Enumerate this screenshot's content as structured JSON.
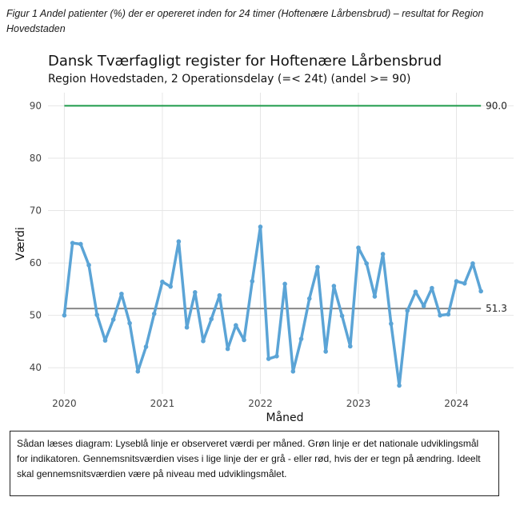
{
  "caption": "Figur 1 Andel patienter (%) der er opereret inden for 24 timer (Hoftenære Lårbensbrud) – resultat for Region Hovedstaden",
  "note": "Sådan læses diagram: Lyseblå linje er observeret værdi per måned. Grøn linje er det nationale udviklingsmål for indikatoren. Gennemsnitsværdien vises i lige linje der er grå - eller rød, hvis der er tegn på ændring. Ideelt skal gennemsnitsværdien være på niveau med udviklingsmålet.",
  "chart_data": {
    "type": "line",
    "title": "Dansk Tværfagligt register for Hoftenære Lårbensbrud",
    "subtitle": "Region Hovedstaden, 2  Operationsdelay (=< 24t) (andel >= 90)",
    "xlabel": "Måned",
    "ylabel": "Værdi",
    "x_ticks": [
      "2020",
      "2021",
      "2022",
      "2023",
      "2024"
    ],
    "y_ticks": [
      40,
      50,
      60,
      70,
      80,
      90
    ],
    "ylim": [
      35,
      92.5
    ],
    "xlim": [
      "2019-11",
      "2024-08"
    ],
    "grid": true,
    "x": [
      "2020-01",
      "2020-02",
      "2020-03",
      "2020-04",
      "2020-05",
      "2020-06",
      "2020-07",
      "2020-08",
      "2020-09",
      "2020-10",
      "2020-11",
      "2020-12",
      "2021-01",
      "2021-02",
      "2021-03",
      "2021-04",
      "2021-05",
      "2021-06",
      "2021-07",
      "2021-08",
      "2021-09",
      "2021-10",
      "2021-11",
      "2021-12",
      "2022-01",
      "2022-02",
      "2022-03",
      "2022-04",
      "2022-05",
      "2022-06",
      "2022-07",
      "2022-08",
      "2022-09",
      "2022-10",
      "2022-11",
      "2022-12",
      "2023-01",
      "2023-02",
      "2023-03",
      "2023-04",
      "2023-05",
      "2023-06",
      "2023-07",
      "2023-08",
      "2023-09",
      "2023-10",
      "2023-11",
      "2023-12",
      "2024-01",
      "2024-02",
      "2024-03",
      "2024-04"
    ],
    "series": [
      {
        "color": "#5ba4d6",
        "values": [
          50.0,
          63.8,
          63.6,
          59.6,
          50.1,
          45.2,
          49.2,
          54.1,
          48.5,
          39.3,
          44.0,
          50.3,
          56.4,
          55.5,
          64.1,
          47.7,
          54.4,
          45.1,
          49.3,
          53.8,
          43.6,
          48.1,
          45.3,
          56.5,
          66.9,
          41.7,
          42.2,
          56.0,
          39.3,
          45.5,
          53.2,
          59.2,
          43.1,
          55.6,
          49.9,
          44.1,
          62.9,
          59.9,
          53.6,
          61.7,
          48.4,
          36.6,
          50.9,
          54.5,
          51.8,
          55.2,
          50.0,
          50.2,
          56.5,
          56.1,
          59.9,
          54.6
        ]
      }
    ],
    "reference_lines": [
      {
        "value": 90.0,
        "label": "90.0",
        "color": "#1e9a4a",
        "start": "2020-01",
        "end": "2024-04"
      },
      {
        "value": 51.3,
        "label": "51.3",
        "color": "#888888",
        "start": "2020-01",
        "end": "2024-04"
      }
    ]
  }
}
